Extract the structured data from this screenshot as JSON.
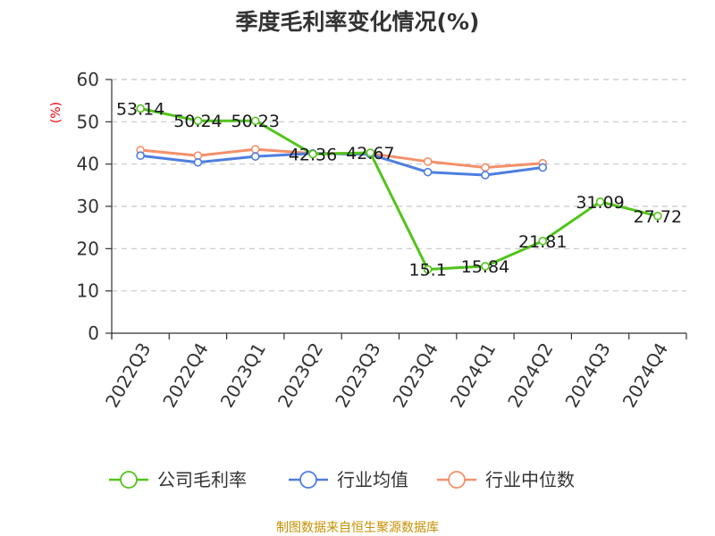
{
  "chart_data": {
    "type": "line",
    "title": "季度毛利率变化情况(%)",
    "ylabel": "(%)",
    "xlabel": "",
    "ylim": [
      0,
      60
    ],
    "yticks": [
      0,
      10,
      20,
      30,
      40,
      50,
      60
    ],
    "grid": true,
    "legend_position": "bottom",
    "categories": [
      "2022Q3",
      "2022Q4",
      "2023Q1",
      "2023Q2",
      "2023Q3",
      "2023Q4",
      "2024Q1",
      "2024Q2",
      "2024Q3",
      "2024Q4"
    ],
    "series": [
      {
        "name": "公司毛利率",
        "color": "#52c41a",
        "values": [
          53.14,
          50.24,
          50.23,
          42.36,
          42.67,
          15.1,
          15.84,
          21.81,
          31.09,
          27.72
        ],
        "labels": [
          "53.14",
          "50.24",
          "50.23",
          "42.36",
          "42.67",
          "15.1",
          "15.84",
          "21.81",
          "31.09",
          "27.72"
        ]
      },
      {
        "name": "行业均值",
        "color": "#4e7ee0",
        "values": [
          42.0,
          40.4,
          41.8,
          42.5,
          42.3,
          38.1,
          37.4,
          39.2,
          null,
          null
        ]
      },
      {
        "name": "行业中位数",
        "color": "#f3906a",
        "values": [
          43.3,
          42.0,
          43.5,
          42.5,
          42.5,
          40.6,
          39.2,
          40.2,
          null,
          null
        ]
      }
    ]
  },
  "source": "制图数据来自恒生聚源数据库"
}
